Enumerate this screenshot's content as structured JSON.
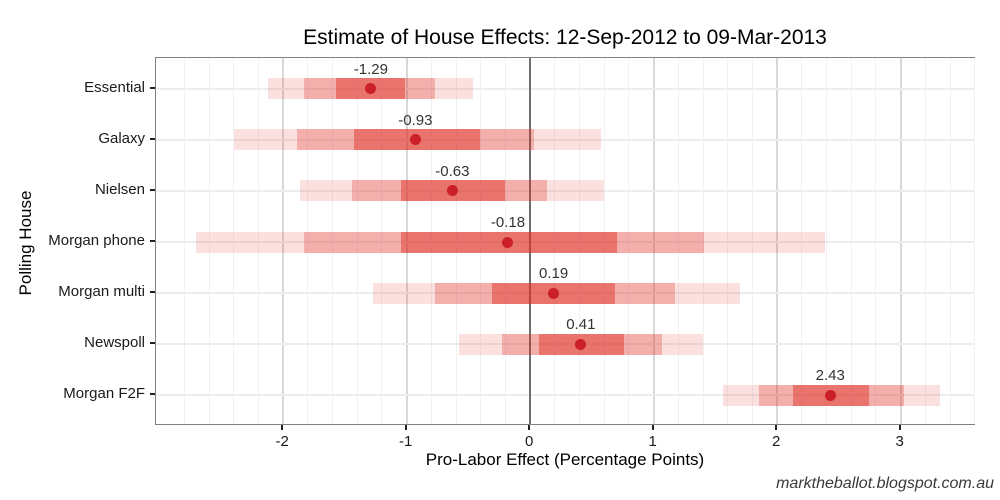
{
  "page": {
    "footer": "marktheballot.blogspot.com.au"
  },
  "chart_data": {
    "type": "interval",
    "title": "Estimate of House Effects: 12-Sep-2012 to 09-Mar-2013",
    "xlabel": "Pro-Labor Effect (Percentage Points)",
    "ylabel": "Polling House",
    "xlim": [
      -3.03,
      3.61
    ],
    "x_major_ticks": [
      -2,
      -1,
      0,
      1,
      2,
      3
    ],
    "x_minor_step": 0.2,
    "zero_line_at": 0,
    "grid": "on",
    "legend": "none",
    "categories": [
      "Essential",
      "Galaxy",
      "Nielsen",
      "Morgan phone",
      "Morgan multi",
      "Newspoll",
      "Morgan F2F"
    ],
    "series": [
      {
        "house": "Essential",
        "point": -1.29,
        "label": "-1.29",
        "inner": [
          -1.57,
          -1.01
        ],
        "middle": [
          -1.83,
          -0.77
        ],
        "outer": [
          -2.12,
          -0.46
        ]
      },
      {
        "house": "Galaxy",
        "point": -0.93,
        "label": "-0.93",
        "inner": [
          -1.43,
          -0.41
        ],
        "middle": [
          -1.89,
          0.03
        ],
        "outer": [
          -2.4,
          0.57
        ]
      },
      {
        "house": "Nielsen",
        "point": -0.63,
        "label": "-0.63",
        "inner": [
          -1.05,
          -0.2
        ],
        "middle": [
          -1.44,
          0.14
        ],
        "outer": [
          -1.86,
          0.6
        ]
      },
      {
        "house": "Morgan phone",
        "point": -0.18,
        "label": "-0.18",
        "inner": [
          -1.05,
          0.7
        ],
        "middle": [
          -1.83,
          1.41
        ],
        "outer": [
          -2.71,
          2.39
        ]
      },
      {
        "house": "Morgan multi",
        "point": 0.19,
        "label": "0.19",
        "inner": [
          -0.31,
          0.69
        ],
        "middle": [
          -0.77,
          1.17
        ],
        "outer": [
          -1.27,
          1.7
        ]
      },
      {
        "house": "Newspoll",
        "point": 0.41,
        "label": "0.41",
        "inner": [
          0.07,
          0.76
        ],
        "middle": [
          -0.23,
          1.07
        ],
        "outer": [
          -0.58,
          1.4
        ]
      },
      {
        "house": "Morgan F2F",
        "point": 2.43,
        "label": "2.43",
        "inner": [
          2.13,
          2.74
        ],
        "middle": [
          1.85,
          3.03
        ],
        "outer": [
          1.56,
          3.32
        ]
      }
    ],
    "colors": {
      "band_outer": "rgba(222,45,38,0.14)",
      "band_middle": "rgba(222,45,38,0.28)",
      "band_inner": "rgba(222,45,38,0.46)",
      "point": "#cb2027",
      "zero_line": "#6e6e6e",
      "grid_major": "#d8d8d8",
      "grid_minor": "#f1f1f1",
      "grid_row": "#ededed",
      "panel_border": "#808080"
    }
  }
}
